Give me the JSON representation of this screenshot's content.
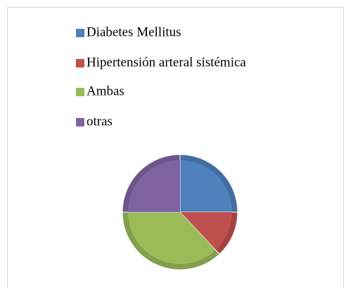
{
  "chart_data": {
    "type": "pie",
    "categories": [
      "Diabetes Mellitus",
      "Hipertensión arteral sistémica",
      "Ambas",
      "otras"
    ],
    "values": [
      25,
      13,
      37,
      25
    ],
    "colors": [
      "#4f81bd",
      "#c0504d",
      "#9bbb59",
      "#8064a2"
    ],
    "legend": "top"
  }
}
